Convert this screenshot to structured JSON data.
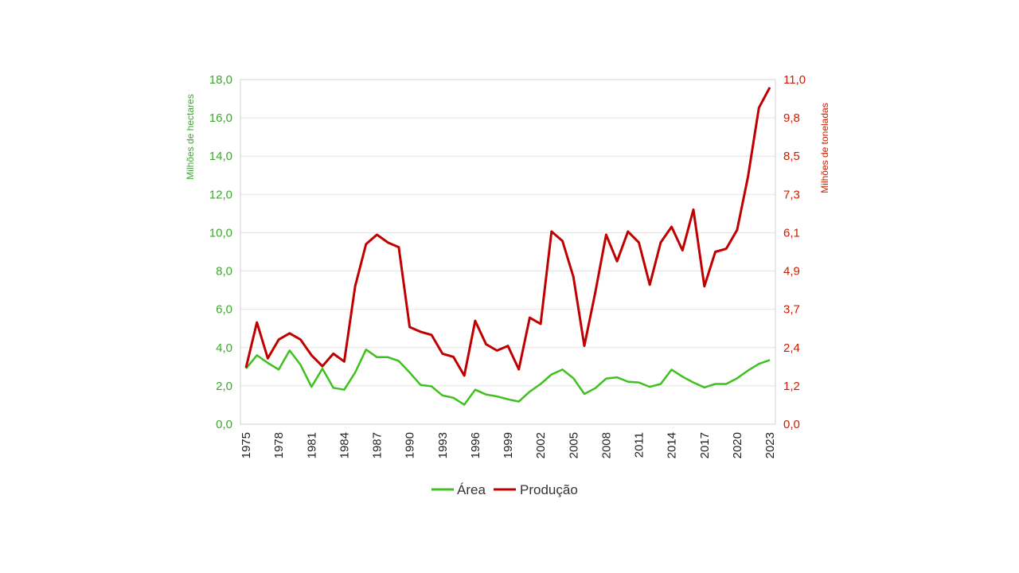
{
  "chart_data": {
    "type": "line",
    "title": "",
    "xlabel": "",
    "y_left_label": "Milhões de hectares",
    "y_right_label": "Milhões de toneladas",
    "y_left_lim": [
      0,
      18
    ],
    "y_left_ticks": [
      "0,0",
      "2,0",
      "4,0",
      "6,0",
      "8,0",
      "10,0",
      "12,0",
      "14,0",
      "16,0",
      "18,0"
    ],
    "y_right_lim": [
      0,
      11
    ],
    "y_right_ticks": [
      "0,0",
      "1,2",
      "2,4",
      "3,7",
      "4,9",
      "6,1",
      "7,3",
      "8,5",
      "9,8",
      "11,0"
    ],
    "x_tick_labels": [
      "1975",
      "1978",
      "1981",
      "1984",
      "1987",
      "1990",
      "1993",
      "1996",
      "1999",
      "2002",
      "2005",
      "2008",
      "2011",
      "2014",
      "2017",
      "2020",
      "2023"
    ],
    "grid": "horizontal",
    "legend_position": "bottom",
    "colors": {
      "area": "#3ec11e",
      "producao": "#c00000"
    },
    "x": [
      1975,
      1976,
      1977,
      1978,
      1979,
      1980,
      1981,
      1982,
      1983,
      1984,
      1985,
      1986,
      1987,
      1988,
      1989,
      1990,
      1991,
      1992,
      1993,
      1994,
      1995,
      1996,
      1997,
      1998,
      1999,
      2000,
      2001,
      2002,
      2003,
      2004,
      2005,
      2006,
      2007,
      2008,
      2009,
      2010,
      2011,
      2012,
      2013,
      2014,
      2015,
      2016,
      2017,
      2018,
      2019,
      2020,
      2021,
      2022,
      2023
    ],
    "series": [
      {
        "name": "Área",
        "axis": "left",
        "values": [
          2.9,
          3.6,
          3.2,
          2.85,
          3.85,
          3.1,
          1.95,
          2.9,
          1.9,
          1.8,
          2.7,
          3.9,
          3.5,
          3.5,
          3.3,
          2.7,
          2.05,
          1.98,
          1.5,
          1.38,
          1.02,
          1.8,
          1.55,
          1.45,
          1.3,
          1.18,
          1.7,
          2.1,
          2.6,
          2.85,
          2.4,
          1.58,
          1.88,
          2.38,
          2.45,
          2.22,
          2.18,
          1.95,
          2.1,
          2.85,
          2.48,
          2.18,
          1.92,
          2.1,
          2.1,
          2.4,
          2.8,
          3.15,
          3.35
        ]
      },
      {
        "name": "Produção",
        "axis": "right",
        "values": [
          1.8,
          3.25,
          2.1,
          2.7,
          2.9,
          2.7,
          2.2,
          1.85,
          2.25,
          2.0,
          4.4,
          5.75,
          6.05,
          5.8,
          5.65,
          3.1,
          2.95,
          2.85,
          2.25,
          2.15,
          1.55,
          3.3,
          2.55,
          2.35,
          2.5,
          1.75,
          3.4,
          3.2,
          6.15,
          5.85,
          4.7,
          2.5,
          4.2,
          6.05,
          5.2,
          6.15,
          5.8,
          4.45,
          5.8,
          6.3,
          5.55,
          6.85,
          4.4,
          5.5,
          5.6,
          6.2,
          7.9,
          10.1,
          10.75
        ]
      }
    ]
  }
}
